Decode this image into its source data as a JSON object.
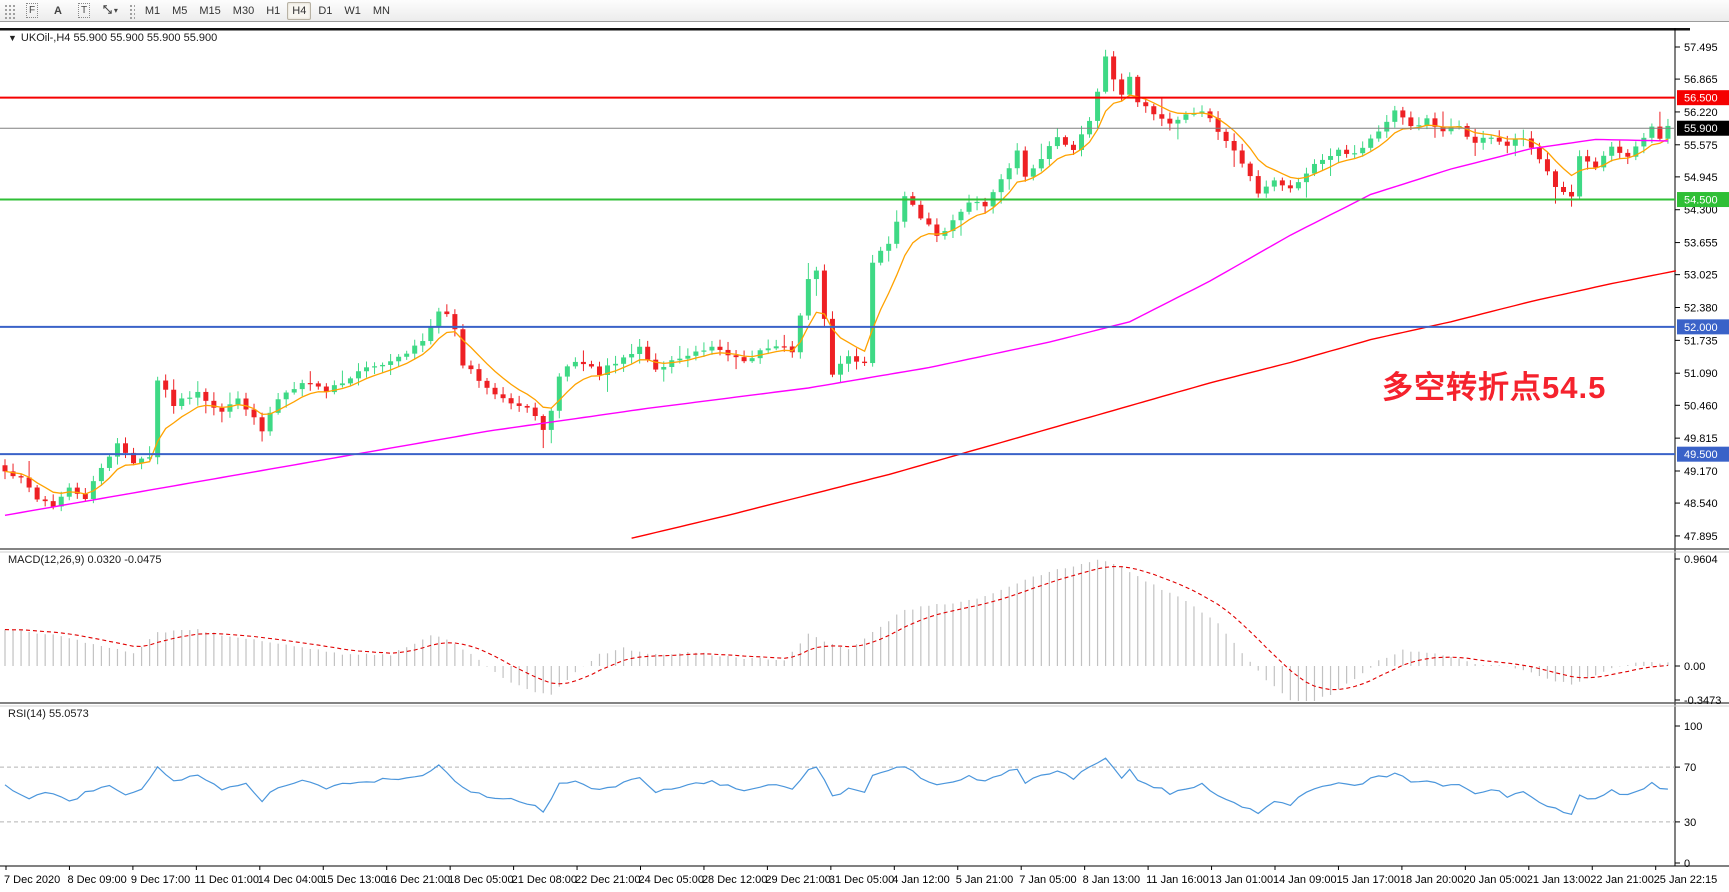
{
  "toolbar": {
    "tool_f_label": "F",
    "tool_a_label": "A",
    "tool_t_label": "T",
    "timeframes": [
      "M1",
      "M5",
      "M15",
      "M30",
      "H1",
      "H4",
      "D1",
      "W1",
      "MN"
    ],
    "active_timeframe": "H4"
  },
  "header": {
    "text": "UKOil-,H4  55.900 55.900 55.900 55.900"
  },
  "chart_data": {
    "type": "candlestick",
    "symbol": "UKOil-",
    "timeframe": "H4",
    "last_price": 55.9,
    "bars": 208,
    "price_axis_ticks": [
      "57.495",
      "56.865",
      "56.220",
      "55.575",
      "54.945",
      "54.300",
      "53.655",
      "53.025",
      "52.380",
      "51.735",
      "51.090",
      "50.460",
      "49.815",
      "49.170",
      "48.540",
      "47.895"
    ],
    "x_labels": [
      "7 Dec 2020",
      "8 Dec 09:00",
      "9 Dec 17:00",
      "11 Dec 01:00",
      "14 Dec 04:00",
      "15 Dec 13:00",
      "16 Dec 21:00",
      "18 Dec 05:00",
      "21 Dec 08:00",
      "22 Dec 21:00",
      "24 Dec 05:00",
      "28 Dec 12:00",
      "29 Dec 21:00",
      "31 Dec 05:00",
      "4 Jan 12:00",
      "5 Jan 21:00",
      "7 Jan 05:00",
      "8 Jan 13:00",
      "11 Jan 16:00",
      "13 Jan 01:00",
      "14 Jan 09:00",
      "15 Jan 17:00",
      "18 Jan 20:00",
      "20 Jan 05:00",
      "21 Jan 13:00",
      "22 Jan 21:00",
      "25 Jan 22:15"
    ],
    "hlines": [
      {
        "price": 56.5,
        "color": "#f50000",
        "width": 2
      },
      {
        "price": 55.9,
        "color": "#808080",
        "width": 1
      },
      {
        "price": 54.5,
        "color": "#2fbf36",
        "width": 2
      },
      {
        "price": 52.0,
        "color": "#3a62c8",
        "width": 2
      },
      {
        "price": 49.5,
        "color": "#3a62c8",
        "width": 2
      }
    ],
    "price_tags": [
      {
        "text": "56.500",
        "price": 56.5,
        "bg": "#f50000"
      },
      {
        "text": "55.900",
        "price": 55.9,
        "bg": "#000000"
      },
      {
        "text": "54.500",
        "price": 54.5,
        "bg": "#2fbf36"
      },
      {
        "text": "52.000",
        "price": 52.0,
        "bg": "#3a62c8"
      },
      {
        "text": "49.500",
        "price": 49.5,
        "bg": "#3a62c8"
      }
    ],
    "colors": {
      "bull": "#3ed985",
      "bear": "#ee2024",
      "ma_fast": "#ffa200",
      "ma_mid": "#ff00ff",
      "ma_slow": "#ff0000",
      "macd_hist": "#c2c2c2",
      "macd_signal": "#e00000",
      "rsi": "#4b96dc",
      "rsi_levels": "#b4b4b4",
      "axis_text": "#000000"
    },
    "close_anchors": [
      [
        0,
        49.15
      ],
      [
        2,
        49.0
      ],
      [
        4,
        48.65
      ],
      [
        6,
        48.5
      ],
      [
        8,
        48.8
      ],
      [
        10,
        48.65
      ],
      [
        12,
        49.2
      ],
      [
        14,
        49.75
      ],
      [
        16,
        49.3
      ],
      [
        18,
        49.5
      ],
      [
        19,
        50.95
      ],
      [
        21,
        50.5
      ],
      [
        24,
        50.75
      ],
      [
        27,
        50.3
      ],
      [
        29,
        50.65
      ],
      [
        32,
        49.95
      ],
      [
        34,
        50.6
      ],
      [
        37,
        50.95
      ],
      [
        40,
        50.75
      ],
      [
        44,
        51.1
      ],
      [
        48,
        51.35
      ],
      [
        52,
        51.7
      ],
      [
        54,
        52.25
      ],
      [
        55,
        52.3
      ],
      [
        56,
        51.9
      ],
      [
        57,
        51.25
      ],
      [
        60,
        50.85
      ],
      [
        63,
        50.5
      ],
      [
        66,
        50.3
      ],
      [
        67,
        49.95
      ],
      [
        68,
        50.3
      ],
      [
        69,
        51.05
      ],
      [
        71,
        51.35
      ],
      [
        74,
        51.1
      ],
      [
        77,
        51.35
      ],
      [
        79,
        51.6
      ],
      [
        81,
        51.15
      ],
      [
        84,
        51.4
      ],
      [
        88,
        51.55
      ],
      [
        92,
        51.35
      ],
      [
        95,
        51.6
      ],
      [
        98,
        51.55
      ],
      [
        100,
        52.9
      ],
      [
        101,
        53.15
      ],
      [
        102,
        52.1
      ],
      [
        103,
        51.1
      ],
      [
        105,
        51.4
      ],
      [
        107,
        51.3
      ],
      [
        108,
        53.3
      ],
      [
        110,
        53.65
      ],
      [
        112,
        54.55
      ],
      [
        114,
        54.15
      ],
      [
        116,
        53.8
      ],
      [
        118,
        54.05
      ],
      [
        120,
        54.5
      ],
      [
        122,
        54.35
      ],
      [
        124,
        54.85
      ],
      [
        126,
        55.45
      ],
      [
        127,
        54.95
      ],
      [
        129,
        55.35
      ],
      [
        131,
        55.7
      ],
      [
        133,
        55.5
      ],
      [
        135,
        56.1
      ],
      [
        136,
        56.65
      ],
      [
        137,
        57.25
      ],
      [
        138,
        56.85
      ],
      [
        139,
        56.5
      ],
      [
        140,
        56.95
      ],
      [
        141,
        56.45
      ],
      [
        143,
        56.2
      ],
      [
        145,
        56.0
      ],
      [
        147,
        56.15
      ],
      [
        149,
        56.25
      ],
      [
        151,
        55.85
      ],
      [
        153,
        55.45
      ],
      [
        155,
        54.95
      ],
      [
        156,
        54.65
      ],
      [
        158,
        54.9
      ],
      [
        160,
        54.7
      ],
      [
        162,
        55.05
      ],
      [
        164,
        55.3
      ],
      [
        166,
        55.5
      ],
      [
        168,
        55.4
      ],
      [
        170,
        55.7
      ],
      [
        172,
        56.0
      ],
      [
        173,
        56.2
      ],
      [
        175,
        55.95
      ],
      [
        177,
        56.05
      ],
      [
        179,
        55.8
      ],
      [
        181,
        55.95
      ],
      [
        183,
        55.6
      ],
      [
        185,
        55.75
      ],
      [
        187,
        55.55
      ],
      [
        189,
        55.7
      ],
      [
        191,
        55.25
      ],
      [
        193,
        54.8
      ],
      [
        195,
        54.6
      ],
      [
        196,
        55.35
      ],
      [
        198,
        55.1
      ],
      [
        200,
        55.5
      ],
      [
        202,
        55.3
      ],
      [
        204,
        55.7
      ],
      [
        205,
        55.95
      ],
      [
        206,
        55.7
      ],
      [
        207,
        55.9
      ]
    ],
    "ma_mid_anchors": [
      [
        0,
        48.3
      ],
      [
        20,
        48.85
      ],
      [
        40,
        49.4
      ],
      [
        60,
        49.95
      ],
      [
        80,
        50.4
      ],
      [
        100,
        50.8
      ],
      [
        115,
        51.2
      ],
      [
        130,
        51.7
      ],
      [
        140,
        52.1
      ],
      [
        150,
        52.9
      ],
      [
        160,
        53.8
      ],
      [
        170,
        54.6
      ],
      [
        180,
        55.1
      ],
      [
        190,
        55.5
      ],
      [
        198,
        55.68
      ],
      [
        207,
        55.65
      ]
    ],
    "ma_slow_anchors": [
      [
        78,
        47.85
      ],
      [
        90,
        48.3
      ],
      [
        100,
        48.7
      ],
      [
        110,
        49.1
      ],
      [
        120,
        49.55
      ],
      [
        130,
        50.0
      ],
      [
        140,
        50.45
      ],
      [
        150,
        50.9
      ],
      [
        160,
        51.3
      ],
      [
        170,
        51.75
      ],
      [
        180,
        52.1
      ],
      [
        190,
        52.5
      ],
      [
        200,
        52.85
      ],
      [
        208,
        53.1
      ]
    ],
    "annotation": {
      "text": "多空转折点54.5",
      "color": "#f5222d"
    },
    "macd": {
      "label": "MACD(12,26,9)",
      "value": "0.0320",
      "signal_value": "-0.0475",
      "axis_ticks": [
        {
          "text": "0.9604",
          "v": 0.9604
        },
        {
          "text": "0.00",
          "v": 0
        },
        {
          "text": "-0.3473",
          "v": -0.3473
        }
      ],
      "anchors": [
        [
          0,
          0.33
        ],
        [
          6,
          0.28
        ],
        [
          12,
          0.17
        ],
        [
          16,
          0.12
        ],
        [
          19,
          0.3
        ],
        [
          24,
          0.32
        ],
        [
          30,
          0.24
        ],
        [
          36,
          0.17
        ],
        [
          42,
          0.11
        ],
        [
          48,
          0.1
        ],
        [
          53,
          0.28
        ],
        [
          56,
          0.2
        ],
        [
          60,
          0.0
        ],
        [
          63,
          -0.15
        ],
        [
          66,
          -0.24
        ],
        [
          68,
          -0.26
        ],
        [
          71,
          -0.05
        ],
        [
          74,
          0.1
        ],
        [
          77,
          0.16
        ],
        [
          80,
          0.1
        ],
        [
          86,
          0.12
        ],
        [
          92,
          0.07
        ],
        [
          97,
          0.06
        ],
        [
          100,
          0.28
        ],
        [
          102,
          0.22
        ],
        [
          105,
          0.15
        ],
        [
          108,
          0.3
        ],
        [
          112,
          0.5
        ],
        [
          116,
          0.55
        ],
        [
          120,
          0.58
        ],
        [
          124,
          0.68
        ],
        [
          128,
          0.8
        ],
        [
          132,
          0.88
        ],
        [
          136,
          0.95
        ],
        [
          139,
          0.88
        ],
        [
          143,
          0.72
        ],
        [
          147,
          0.58
        ],
        [
          151,
          0.38
        ],
        [
          154,
          0.12
        ],
        [
          157,
          -0.12
        ],
        [
          160,
          -0.3
        ],
        [
          162,
          -0.34
        ],
        [
          165,
          -0.25
        ],
        [
          168,
          -0.12
        ],
        [
          171,
          0.05
        ],
        [
          174,
          0.14
        ],
        [
          177,
          0.12
        ],
        [
          180,
          0.08
        ],
        [
          183,
          0.02
        ],
        [
          187,
          -0.01
        ],
        [
          190,
          -0.06
        ],
        [
          193,
          -0.13
        ],
        [
          195,
          -0.17
        ],
        [
          198,
          -0.08
        ],
        [
          201,
          0.0
        ],
        [
          204,
          0.03
        ],
        [
          207,
          0.032
        ]
      ]
    },
    "rsi": {
      "label": "RSI(14)",
      "value": "55.0573",
      "axis_ticks": [
        {
          "text": "100",
          "v": 100
        },
        {
          "text": "70",
          "v": 70
        },
        {
          "text": "30",
          "v": 30
        },
        {
          "text": "0",
          "v": 0
        }
      ],
      "levels": [
        70,
        30
      ],
      "anchors": [
        [
          0,
          56
        ],
        [
          3,
          48
        ],
        [
          5,
          52
        ],
        [
          8,
          45
        ],
        [
          10,
          51
        ],
        [
          13,
          57
        ],
        [
          15,
          49
        ],
        [
          17,
          53
        ],
        [
          19,
          71
        ],
        [
          21,
          60
        ],
        [
          24,
          64
        ],
        [
          27,
          53
        ],
        [
          30,
          59
        ],
        [
          32,
          46
        ],
        [
          34,
          56
        ],
        [
          37,
          61
        ],
        [
          40,
          55
        ],
        [
          44,
          59
        ],
        [
          48,
          61
        ],
        [
          52,
          65
        ],
        [
          54,
          71
        ],
        [
          56,
          60
        ],
        [
          58,
          52
        ],
        [
          60,
          49
        ],
        [
          63,
          46
        ],
        [
          66,
          43
        ],
        [
          67,
          36
        ],
        [
          69,
          57
        ],
        [
          71,
          60
        ],
        [
          74,
          53
        ],
        [
          77,
          58
        ],
        [
          79,
          62
        ],
        [
          81,
          52
        ],
        [
          84,
          56
        ],
        [
          88,
          59
        ],
        [
          92,
          53
        ],
        [
          95,
          57
        ],
        [
          98,
          54
        ],
        [
          100,
          69
        ],
        [
          101,
          71
        ],
        [
          103,
          49
        ],
        [
          105,
          54
        ],
        [
          107,
          51
        ],
        [
          108,
          64
        ],
        [
          110,
          67
        ],
        [
          112,
          71
        ],
        [
          114,
          62
        ],
        [
          116,
          56
        ],
        [
          118,
          59
        ],
        [
          120,
          64
        ],
        [
          122,
          59
        ],
        [
          124,
          64
        ],
        [
          126,
          69
        ],
        [
          127,
          59
        ],
        [
          129,
          64
        ],
        [
          131,
          68
        ],
        [
          133,
          62
        ],
        [
          135,
          69
        ],
        [
          137,
          77
        ],
        [
          139,
          62
        ],
        [
          140,
          69
        ],
        [
          141,
          61
        ],
        [
          143,
          56
        ],
        [
          145,
          51
        ],
        [
          147,
          55
        ],
        [
          149,
          57
        ],
        [
          151,
          49
        ],
        [
          153,
          43
        ],
        [
          155,
          39
        ],
        [
          156,
          36
        ],
        [
          158,
          46
        ],
        [
          160,
          43
        ],
        [
          162,
          51
        ],
        [
          164,
          56
        ],
        [
          166,
          59
        ],
        [
          168,
          56
        ],
        [
          170,
          61
        ],
        [
          172,
          64
        ],
        [
          173,
          66
        ],
        [
          175,
          59
        ],
        [
          177,
          61
        ],
        [
          179,
          55
        ],
        [
          181,
          58
        ],
        [
          183,
          51
        ],
        [
          185,
          54
        ],
        [
          187,
          49
        ],
        [
          189,
          53
        ],
        [
          191,
          45
        ],
        [
          193,
          39
        ],
        [
          195,
          36
        ],
        [
          196,
          49
        ],
        [
          198,
          46
        ],
        [
          200,
          53
        ],
        [
          202,
          49
        ],
        [
          204,
          55
        ],
        [
          205,
          58
        ],
        [
          206,
          54
        ],
        [
          207,
          55
        ]
      ]
    }
  }
}
